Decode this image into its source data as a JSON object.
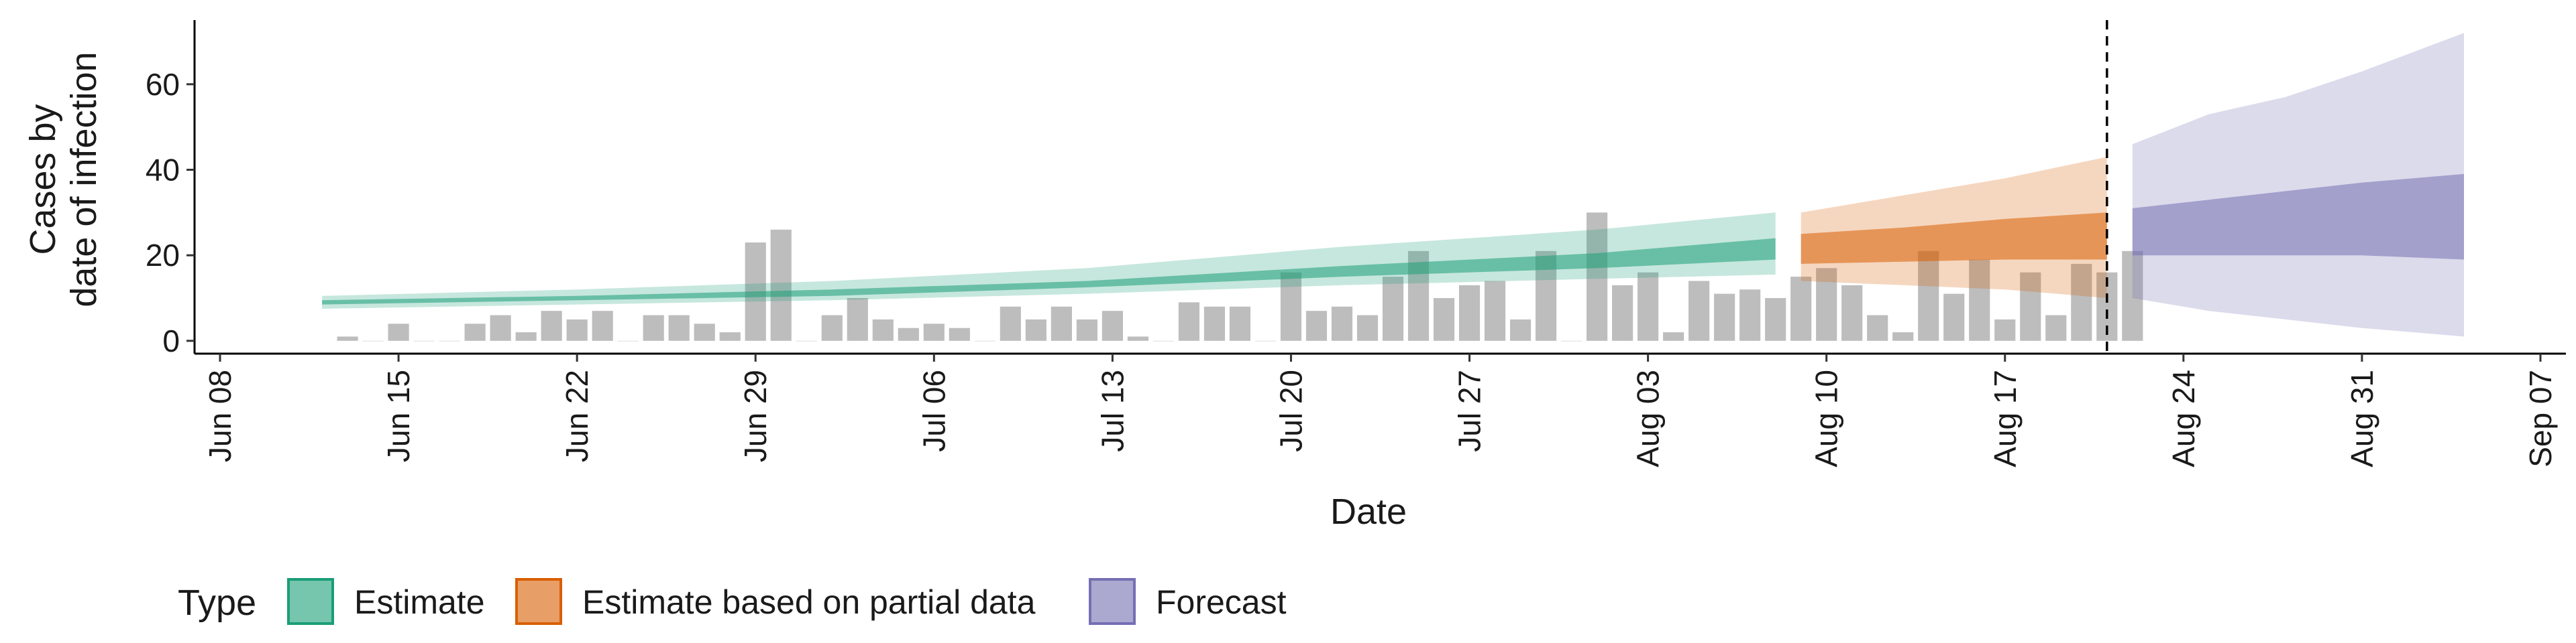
{
  "chart_data": {
    "type": "bar",
    "title": "",
    "xlabel": "Date",
    "ylabel_lines": [
      "Cases by",
      "date of infection"
    ],
    "ylim": [
      -3,
      75
    ],
    "yticks": [
      0,
      20,
      40,
      60
    ],
    "xlim_days": [
      "2020-06-07",
      "2020-09-08"
    ],
    "xticks": [
      {
        "date": "2020-06-08",
        "label": "Jun 08"
      },
      {
        "date": "2020-06-15",
        "label": "Jun 15"
      },
      {
        "date": "2020-06-22",
        "label": "Jun 22"
      },
      {
        "date": "2020-06-29",
        "label": "Jun 29"
      },
      {
        "date": "2020-07-06",
        "label": "Jul 06"
      },
      {
        "date": "2020-07-13",
        "label": "Jul 13"
      },
      {
        "date": "2020-07-20",
        "label": "Jul 20"
      },
      {
        "date": "2020-07-27",
        "label": "Jul 27"
      },
      {
        "date": "2020-08-03",
        "label": "Aug 03"
      },
      {
        "date": "2020-08-10",
        "label": "Aug 10"
      },
      {
        "date": "2020-08-17",
        "label": "Aug 17"
      },
      {
        "date": "2020-08-24",
        "label": "Aug 24"
      },
      {
        "date": "2020-08-31",
        "label": "Aug 31"
      },
      {
        "date": "2020-09-07",
        "label": "Sep 07"
      }
    ],
    "bars": {
      "name": "Reported cases",
      "color": "#bdbdbd",
      "start_date": "2020-06-13",
      "values": [
        1,
        0,
        4,
        0,
        0,
        4,
        6,
        2,
        7,
        5,
        7,
        0,
        6,
        6,
        4,
        2,
        23,
        26,
        0,
        6,
        10,
        5,
        3,
        4,
        3,
        0,
        8,
        5,
        8,
        5,
        7,
        1,
        0,
        9,
        8,
        8,
        0,
        16,
        7,
        8,
        6,
        15,
        21,
        10,
        13,
        14,
        5,
        21,
        0,
        30,
        13,
        16,
        2,
        14,
        11,
        12,
        10,
        15,
        17,
        13,
        6,
        2,
        21,
        11,
        19,
        5,
        16,
        6,
        18,
        16,
        21
      ]
    },
    "vline": {
      "date": "2020-08-21",
      "style": "dashed"
    },
    "series": [
      {
        "name": "Estimate",
        "color": "#1b9e77",
        "dates": [
          "2020-06-12",
          "2020-06-22",
          "2020-07-02",
          "2020-07-12",
          "2020-07-22",
          "2020-08-01",
          "2020-08-08"
        ],
        "outer_lower": [
          7.5,
          8.5,
          9.5,
          11,
          13,
          14.5,
          15.5
        ],
        "outer_upper": [
          10.5,
          12,
          14,
          17,
          22,
          26,
          30
        ],
        "inner_lower": [
          8.5,
          9.5,
          10.5,
          12.5,
          15,
          17,
          19
        ],
        "inner_upper": [
          9.5,
          10.5,
          12,
          14,
          17.5,
          20.5,
          24
        ]
      },
      {
        "name": "Estimate based on partial data",
        "color": "#d95f02",
        "dates": [
          "2020-08-09",
          "2020-08-13",
          "2020-08-17",
          "2020-08-21"
        ],
        "outer_lower": [
          14,
          13,
          12,
          10
        ],
        "outer_upper": [
          30,
          34,
          38,
          43
        ],
        "inner_lower": [
          18,
          18.5,
          19,
          19
        ],
        "inner_upper": [
          25,
          26.5,
          28.5,
          30
        ]
      },
      {
        "name": "Forecast",
        "color": "#7570b3",
        "dates": [
          "2020-08-22",
          "2020-08-25",
          "2020-08-28",
          "2020-08-31",
          "2020-09-04"
        ],
        "outer_lower": [
          10,
          7,
          5,
          3,
          1
        ],
        "outer_upper": [
          46,
          53,
          57,
          63,
          72
        ],
        "inner_lower": [
          20,
          20,
          20,
          20,
          19
        ],
        "inner_upper": [
          31,
          33,
          35,
          37,
          39
        ]
      }
    ],
    "legend": {
      "title": "Type",
      "position": "bottom-left",
      "entries": [
        {
          "label": "Estimate",
          "color": "#1b9e77"
        },
        {
          "label": "Estimate based on partial data",
          "color": "#d95f02"
        },
        {
          "label": "Forecast",
          "color": "#7570b3"
        }
      ]
    },
    "grid": false
  }
}
